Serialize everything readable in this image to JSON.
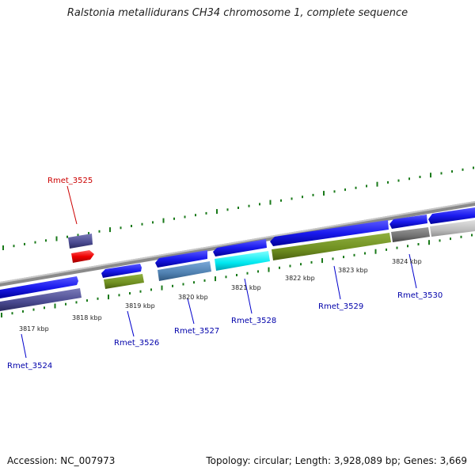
{
  "title": "Ralstonia metallidurans CH34 chromosome 1, complete sequence",
  "footer": {
    "accession": "Accession: NC_007973",
    "summary": "Topology: circular; Length: 3,928,089 bp; Genes: 3,669"
  },
  "scale_labels": [
    "3817 kbp",
    "3818 kbp",
    "3819 kbp",
    "3820 kbp",
    "3821 kbp",
    "3822 kbp",
    "3823 kbp",
    "3824 kbp"
  ],
  "genes": [
    {
      "id": "Rmet_3524",
      "color": "#0000cc"
    },
    {
      "id": "Rmet_3525",
      "color": "#cc0000"
    },
    {
      "id": "Rmet_3526",
      "color": "#0000cc"
    },
    {
      "id": "Rmet_3527",
      "color": "#0000cc"
    },
    {
      "id": "Rmet_3528",
      "color": "#0000cc"
    },
    {
      "id": "Rmet_3529",
      "color": "#0000cc"
    },
    {
      "id": "Rmet_3530",
      "color": "#0000cc"
    }
  ],
  "colors": {
    "backbone": "#8a8a8a",
    "tick": "#1a7a1a",
    "forward_gene": "#1a1aee",
    "rna_gene": "#ee0000",
    "protein_purple": "#4a4a90",
    "protein_green": "#6f8f20",
    "protein_steel": "#4f80b0",
    "protein_cyan": "#00e8f0",
    "protein_gray": "#707070",
    "protein_lightgray": "#bcbcbc"
  }
}
